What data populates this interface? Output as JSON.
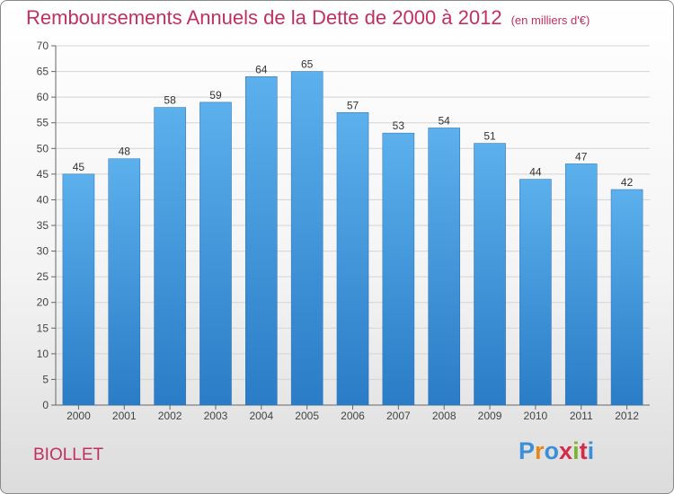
{
  "header": {
    "title": "Remboursements Annuels de la Dette de 2000 à 2012",
    "subtitle": "(en milliers d'€)"
  },
  "footer": {
    "place": "BIOLLET",
    "logo": {
      "letters": [
        "P",
        "r",
        "o",
        "x",
        "i",
        "t",
        "i"
      ],
      "colors": [
        "#3a8fd8",
        "#e8861a",
        "#3a8fd8",
        "#d62a4a",
        "#7ab62c",
        "#d62a4a",
        "#3a8fd8"
      ]
    }
  },
  "chart_data": {
    "type": "bar",
    "categories": [
      "2000",
      "2001",
      "2002",
      "2003",
      "2004",
      "2005",
      "2006",
      "2007",
      "2008",
      "2009",
      "2010",
      "2011",
      "2012"
    ],
    "values": [
      45,
      48,
      58,
      59,
      64,
      65,
      57,
      53,
      54,
      51,
      44,
      47,
      42
    ],
    "title": "Remboursements Annuels de la Dette de 2000 à 2012",
    "subtitle": "(en milliers d'€)",
    "ylim": [
      0,
      70
    ],
    "yticks": [
      0,
      5,
      10,
      15,
      20,
      25,
      30,
      35,
      40,
      45,
      50,
      55,
      60,
      65,
      70
    ],
    "grid": true,
    "legend": "none",
    "bar_color": "#4aa2e3"
  }
}
